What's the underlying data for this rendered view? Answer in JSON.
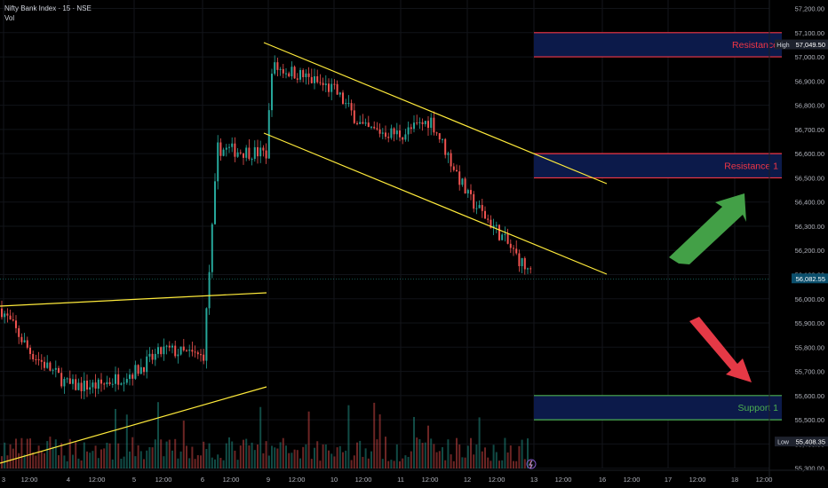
{
  "legend": {
    "symbol": "Nifty Bank Index · 15 · NSE",
    "volume_label": "Vol"
  },
  "price_axis": {
    "ticks": [
      "57,200.00",
      "57,100.00",
      "57,000.00",
      "56,900.00",
      "56,800.00",
      "56,700.00",
      "56,600.00",
      "56,500.00",
      "56,400.00",
      "56,300.00",
      "56,200.00",
      "56,100.00",
      "56,000.00",
      "55,900.00",
      "55,800.00",
      "55,700.00",
      "55,600.00",
      "55,500.00",
      "55,400.00",
      "55,300.00"
    ],
    "high_tag": "High",
    "high_value": "57,049.50",
    "current_value": "56,082.55",
    "low_tag": "Low",
    "low_value": "55,408.35"
  },
  "time_axis": {
    "labels": [
      "3",
      "12:00",
      "4",
      "12:00",
      "5",
      "12:00",
      "6",
      "12:00",
      "9",
      "12:00",
      "10",
      "12:00",
      "11",
      "12:00",
      "12",
      "12:00",
      "13",
      "12:00",
      "16",
      "12:00",
      "17",
      "12:00",
      "18",
      "12:00"
    ]
  },
  "zones": [
    {
      "label": "Resistance",
      "top": 57100,
      "bottom": 57000,
      "color": "#f23645"
    },
    {
      "label": "Resistance 1",
      "top": 56600,
      "bottom": 56500,
      "color": "#f23645"
    },
    {
      "label": "Support 1",
      "top": 55600,
      "bottom": 55500,
      "color": "#4caf50"
    }
  ],
  "colors": {
    "up": "#26a69a",
    "down": "#ef5350",
    "trendline": "#ffeb3b",
    "zone_fill": "#0c1a4a",
    "arrow_up": "#43a047",
    "arrow_down": "#e53946",
    "axis_tag": "#1e222d",
    "current_tag": "#0b4f6c"
  },
  "icons": [
    "up-arrow-icon",
    "down-arrow-icon",
    "flash-icon"
  ],
  "chart_data": {
    "type": "candlestick",
    "title": "Nifty Bank Index · 15 · NSE",
    "xlabel": "",
    "ylabel": "",
    "ylim": [
      55240,
      57235
    ],
    "grid": true,
    "series": [
      {
        "name": "Nifty Bank Index",
        "kind": "price",
        "approx_path": [
          {
            "x": "3",
            "y": 55960
          },
          {
            "x": "3 12:00",
            "y": 55780
          },
          {
            "x": "4",
            "y": 55640
          },
          {
            "x": "4 12:00",
            "y": 55640
          },
          {
            "x": "5",
            "y": 55700
          },
          {
            "x": "5 12:00",
            "y": 55790
          },
          {
            "x": "6",
            "y": 55760
          },
          {
            "x": "6 12:00",
            "y": 56620
          },
          {
            "x": "6 close",
            "y": 56600
          },
          {
            "x": "9",
            "y": 56960
          },
          {
            "x": "9 12:00",
            "y": 56930
          },
          {
            "x": "10",
            "y": 56860
          },
          {
            "x": "10 12:00",
            "y": 56700
          },
          {
            "x": "11",
            "y": 56680
          },
          {
            "x": "11 12:00",
            "y": 56740
          },
          {
            "x": "12",
            "y": 56420
          },
          {
            "x": "12 12:00",
            "y": 56280
          },
          {
            "x": "13",
            "y": 56082.55
          }
        ]
      },
      {
        "name": "Vol",
        "kind": "volume"
      }
    ],
    "session_high": 57049.5,
    "session_low": 55408.35,
    "last_price": 56082.55
  }
}
